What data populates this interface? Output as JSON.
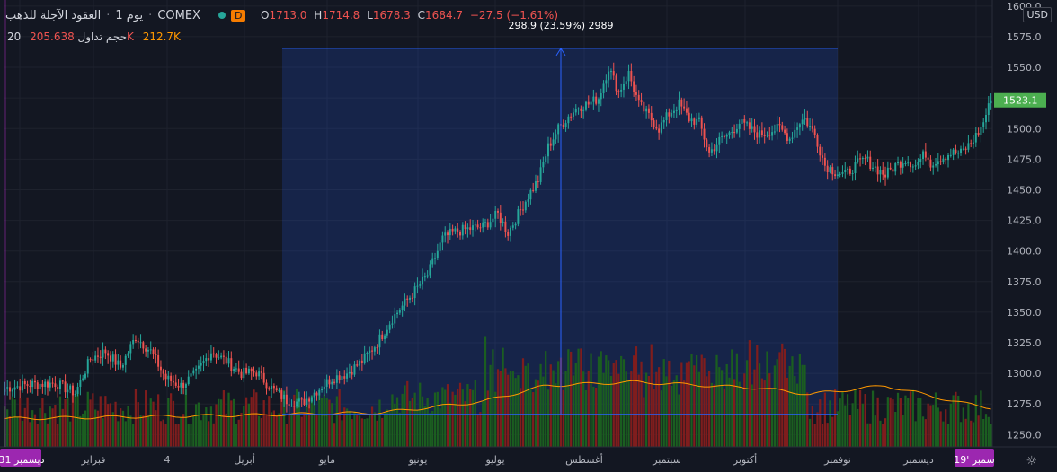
{
  "header": {
    "title": "العقود الآجلة للذهب",
    "interval": "يوم 1",
    "exchange": "COMEX",
    "badge": "D",
    "ohlc": {
      "o_label": "O",
      "o": "1713.0",
      "h_label": "H",
      "h": "1714.8",
      "l_label": "L",
      "l": "1678.3",
      "c_label": "C",
      "c": "1684.7",
      "chg": "−27.5 (−1.61%)"
    },
    "volume_label": "20 حجم تداول",
    "volume_a": "205.638K",
    "volume_b": "212.7K"
  },
  "currency": "USD",
  "colors": {
    "bg": "#131722",
    "up": "#26a69a",
    "down": "#ef5350",
    "vol_up": "#1b5e20",
    "vol_down": "#7f1d1d",
    "ma": "#ff9800",
    "range": "#2962ff",
    "last_price": "#4caf50"
  },
  "measure_label": "298.9 (23.59%) 2989",
  "chart_data": {
    "type": "candlestick",
    "title": "العقود الآجلة للذهب",
    "ylim": [
      1240,
      1605
    ],
    "y_ticks": [
      1250.0,
      1275.0,
      1300.0,
      1325.0,
      1350.0,
      1375.0,
      1400.0,
      1425.0,
      1450.0,
      1475.0,
      1500.0,
      1525.0,
      1550.0,
      1575.0,
      1600.0
    ],
    "last_price": 1523.1,
    "x_ticks": [
      "31 ديسمبر",
      "فبراير",
      "4",
      "أبريل",
      "مايو",
      "يونيو",
      "يوليو",
      "أغسطس",
      "سبتمبر",
      "أكتوبر",
      "نوفمبر",
      "ديسمبر",
      "19' سمبر"
    ],
    "range_low": 1266.6,
    "range_high": 1565.5,
    "range_change": 298.9,
    "range_change_pct": 23.59,
    "range_bars": 2989,
    "anchors": [
      [
        0,
        1288
      ],
      [
        10,
        1291
      ],
      [
        20,
        1292
      ],
      [
        28,
        1284
      ],
      [
        34,
        1312
      ],
      [
        40,
        1318
      ],
      [
        46,
        1305
      ],
      [
        52,
        1330
      ],
      [
        58,
        1318
      ],
      [
        64,
        1296
      ],
      [
        70,
        1290
      ],
      [
        76,
        1300
      ],
      [
        82,
        1318
      ],
      [
        88,
        1310
      ],
      [
        94,
        1300
      ],
      [
        100,
        1301
      ],
      [
        106,
        1288
      ],
      [
        112,
        1278
      ],
      [
        118,
        1276
      ],
      [
        124,
        1286
      ],
      [
        130,
        1296
      ],
      [
        136,
        1300
      ],
      [
        142,
        1310
      ],
      [
        148,
        1325
      ],
      [
        154,
        1345
      ],
      [
        160,
        1360
      ],
      [
        168,
        1380
      ],
      [
        172,
        1400
      ],
      [
        174,
        1410
      ],
      [
        178,
        1415
      ],
      [
        184,
        1418
      ],
      [
        190,
        1420
      ],
      [
        196,
        1430
      ],
      [
        200,
        1415
      ],
      [
        204,
        1430
      ],
      [
        208,
        1445
      ],
      [
        212,
        1458
      ],
      [
        216,
        1485
      ],
      [
        220,
        1500
      ],
      [
        224,
        1510
      ],
      [
        228,
        1518
      ],
      [
        232,
        1520
      ],
      [
        236,
        1525
      ],
      [
        240,
        1550
      ],
      [
        244,
        1530
      ],
      [
        248,
        1545
      ],
      [
        252,
        1520
      ],
      [
        256,
        1510
      ],
      [
        260,
        1500
      ],
      [
        264,
        1512
      ],
      [
        268,
        1520
      ],
      [
        272,
        1508
      ],
      [
        276,
        1505
      ],
      [
        280,
        1480
      ],
      [
        284,
        1490
      ],
      [
        288,
        1496
      ],
      [
        292,
        1505
      ],
      [
        296,
        1500
      ],
      [
        300,
        1495
      ],
      [
        304,
        1498
      ],
      [
        308,
        1500
      ],
      [
        312,
        1492
      ],
      [
        316,
        1506
      ],
      [
        318,
        1508
      ],
      [
        322,
        1495
      ],
      [
        326,
        1470
      ],
      [
        330,
        1465
      ],
      [
        334,
        1462
      ],
      [
        338,
        1470
      ],
      [
        342,
        1475
      ],
      [
        346,
        1468
      ],
      [
        350,
        1462
      ],
      [
        354,
        1470
      ],
      [
        358,
        1475
      ],
      [
        362,
        1470
      ],
      [
        366,
        1480
      ],
      [
        368,
        1472
      ],
      [
        372,
        1476
      ],
      [
        376,
        1480
      ],
      [
        380,
        1480
      ],
      [
        384,
        1488
      ],
      [
        388,
        1500
      ],
      [
        392,
        1523.1
      ]
    ],
    "ma_anchors": [
      [
        0,
        1263
      ],
      [
        100,
        1266
      ],
      [
        150,
        1268
      ],
      [
        190,
        1277
      ],
      [
        215,
        1290
      ],
      [
        250,
        1293
      ],
      [
        300,
        1288
      ],
      [
        320,
        1283
      ],
      [
        350,
        1290
      ],
      [
        380,
        1276
      ],
      [
        392,
        1272
      ]
    ]
  }
}
